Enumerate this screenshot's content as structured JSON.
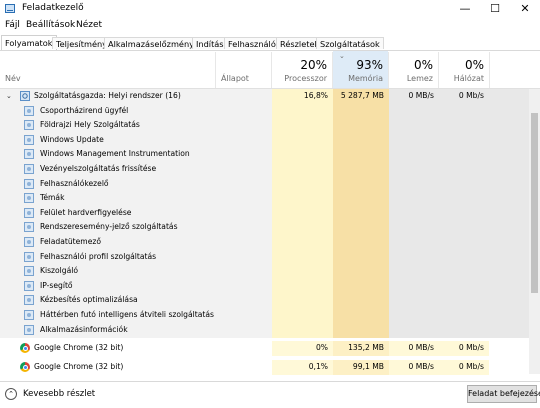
{
  "window": {
    "title": "Feladatkezelő",
    "controls": {
      "minimize": "—",
      "maximize": "☐",
      "close": "✕"
    }
  },
  "menu": [
    "Fájl",
    "Beállítások",
    "Nézet"
  ],
  "tabs": [
    "Folyamatok",
    "Teljesítmény",
    "Alkalmazáselőzmények",
    "Indítás",
    "Felhasználók",
    "Részletek",
    "Szolgáltatások"
  ],
  "active_tab": "Folyamatok",
  "columns": {
    "name": "Név",
    "status": "Állapot",
    "cpu": {
      "pct": "20%",
      "label": "Processzor"
    },
    "memory": {
      "pct": "93%",
      "label": "Memória",
      "sort_arrow": "⌄"
    },
    "disk": {
      "pct": "0%",
      "label": "Lemez"
    },
    "network": {
      "pct": "0%",
      "label": "Hálózat"
    }
  },
  "group": {
    "name": "Szolgáltatásgazda: Helyi rendszer (16)",
    "expander": "⌄",
    "cpu": "16,8%",
    "memory": "5 287,7 MB",
    "disk": "0 MB/s",
    "network": "0 Mb/s",
    "children": [
      "Csoportházirend ügyfél",
      "Földrajzi Hely Szolgáltatás",
      "Windows Update",
      "Windows Management Instrumentation",
      "Vezényelszolgáltatás frissítése",
      "Felhasználókezelő",
      "Témák",
      "Felület hardverfigyelése",
      "Rendszeresemény-jelző szolgáltatás",
      "Feladatütemező",
      "Felhasználói profil szolgáltatás",
      "Kiszolgáló",
      "IP-segítő",
      "Kézbesítés optimalizálása",
      "Háttérben futó intelligens átviteli szolgáltatás",
      "Alkalmazásinformációk"
    ]
  },
  "processes": [
    {
      "name": "Google Chrome (32 bit)",
      "cpu": "0%",
      "memory": "135,2 MB",
      "disk": "0 MB/s",
      "network": "0 Mb/s"
    },
    {
      "name": "Google Chrome (32 bit)",
      "cpu": "0,1%",
      "memory": "99,1 MB",
      "disk": "0 MB/s",
      "network": "0 Mb/s"
    }
  ],
  "footer": {
    "fewer_details": "Kevesebb részlet",
    "fewer_icon": "⌃",
    "end_task": "Feladat befejezése"
  },
  "colors": {
    "cpu_highlight": "#fef6cb",
    "memory_highlight": "#f7e0a6",
    "group_bg": "#e8e8e8",
    "accent": "#2a6eb3"
  }
}
